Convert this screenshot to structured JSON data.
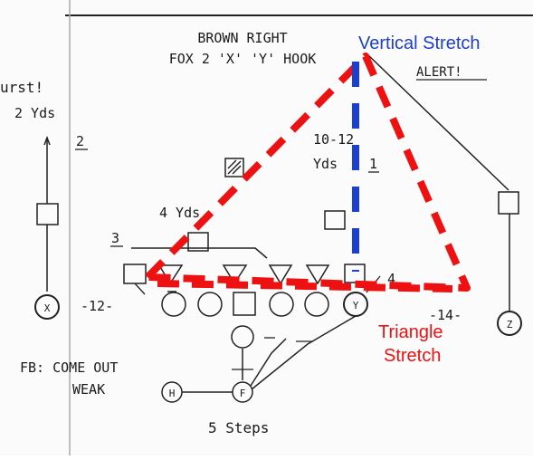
{
  "header": {
    "formation": "BROWN RIGHT",
    "play": "FOX 2 'X' 'Y' HOOK",
    "alert": "ALERT!"
  },
  "labels": {
    "burst": "urst!",
    "burst_depth": "2 Yds",
    "route_2": "2",
    "route_1": "1",
    "route_3": "3",
    "route_4": "4",
    "depth_10_12": "10-12",
    "depth_yds": "Yds",
    "depth_4yds": "4 Yds",
    "split_left": "-12-",
    "split_right": "-14-",
    "fb_note_1": "FB: COME OUT",
    "fb_note_2": "WEAK",
    "steps": "5 Steps"
  },
  "players": {
    "left_wr": "X",
    "right_wr": "Z",
    "y_end": "Y",
    "halfback": "H",
    "fullback": "F"
  },
  "annotations": {
    "vertical": {
      "text": "Vertical Stretch",
      "color": "#1d3fcf"
    },
    "triangle_1": "Triangle",
    "triangle_2": "Stretch",
    "triangle_color": "#ee1111"
  }
}
